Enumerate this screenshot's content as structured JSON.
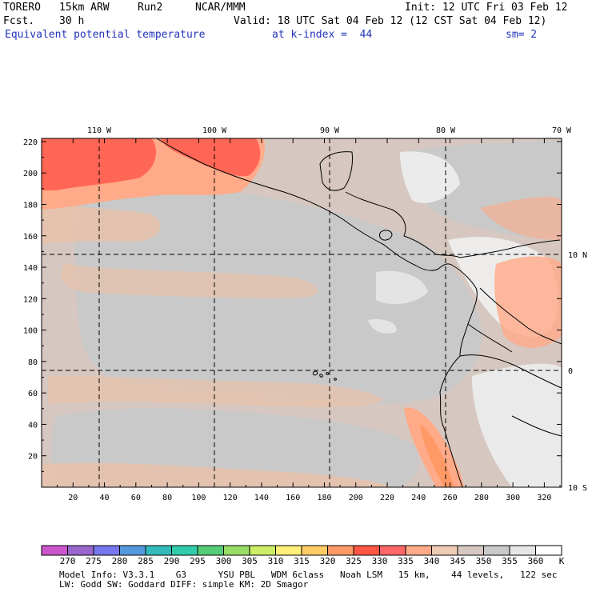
{
  "header": {
    "model": "TORERO",
    "resolution": "15km ARW",
    "run": "Run2",
    "org": "NCAR/MMM",
    "init": "Init: 12 UTC Fri 03 Feb 12",
    "fcst_label": "Fcst.",
    "fcst_value": "30 h",
    "valid": "Valid: 18 UTC Sat 04 Feb 12 (12 CST Sat 04 Feb 12)",
    "field": "Equivalent potential temperature",
    "level": "at k-index =  44",
    "smoothing": "sm= 2"
  },
  "map": {
    "lon_labels": [
      "110 W",
      "100 W",
      "90 W",
      "80 W",
      "70 W"
    ],
    "lat_labels": [
      "10 N",
      "0",
      "10 S"
    ],
    "x_ticks": [
      "20",
      "40",
      "60",
      "80",
      "100",
      "120",
      "140",
      "160",
      "180",
      "200",
      "220",
      "240",
      "260",
      "280",
      "300",
      "320"
    ],
    "y_ticks": [
      "20",
      "40",
      "60",
      "80",
      "100",
      "120",
      "140",
      "160",
      "180",
      "200",
      "220"
    ]
  },
  "colorbar": {
    "unit": "K",
    "levels": [
      "270",
      "275",
      "280",
      "285",
      "290",
      "295",
      "300",
      "305",
      "310",
      "315",
      "320",
      "325",
      "330",
      "335",
      "340",
      "345",
      "350",
      "355",
      "360"
    ],
    "colors": [
      "#cc55cc",
      "#9966cc",
      "#7777ee",
      "#5599dd",
      "#33bbbb",
      "#33ccaa",
      "#55cc77",
      "#99dd66",
      "#ccee66",
      "#ffee77",
      "#ffcc66",
      "#ff9966",
      "#ff5544",
      "#ff6666",
      "#ffaa88",
      "#eecbb4",
      "#d6c8c0",
      "#c9c9c9",
      "#e6e6e6",
      "#ffffff"
    ]
  },
  "footer": {
    "line1": "Model Info: V3.3.1    G3      YSU PBL   WDM 6class   Noah LSM   15 km,    44 levels,   122 sec",
    "line2": "LW: Godd SW: Goddard DIFF: simple KM: 2D Smagor"
  }
}
